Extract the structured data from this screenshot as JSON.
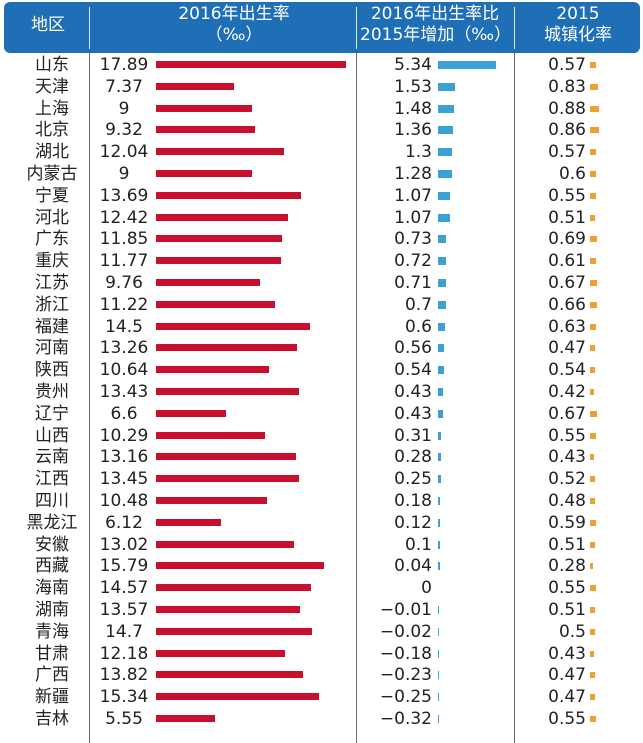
{
  "header": {
    "region": "地区",
    "birth_line1": "2016年出生率",
    "birth_line2": "（‰）",
    "inc_line1": "2016年出生率比",
    "inc_line2": "2015年增加（‰）",
    "urb_line1": "2015",
    "urb_line2": "城镇化率"
  },
  "colors": {
    "header_bg": "#1e6fb5",
    "birth_bar": "#c8102e",
    "inc_bar": "#3aa0d6",
    "urb_bar": "#f0a030"
  },
  "chart_data": {
    "type": "table",
    "columns": [
      "地区",
      "2016年出生率（‰）",
      "2016年出生率比2015年增加（‰）",
      "2015城镇化率"
    ],
    "rows": [
      {
        "region": "山东",
        "birth": "17.89",
        "inc": "5.34",
        "urb": "0.57"
      },
      {
        "region": "天津",
        "birth": "7.37",
        "inc": "1.53",
        "urb": "0.83"
      },
      {
        "region": "上海",
        "birth": "9",
        "inc": "1.48",
        "urb": "0.88"
      },
      {
        "region": "北京",
        "birth": "9.32",
        "inc": "1.36",
        "urb": "0.86"
      },
      {
        "region": "湖北",
        "birth": "12.04",
        "inc": "1.3",
        "urb": "0.57"
      },
      {
        "region": "内蒙古",
        "birth": "9",
        "inc": "1.28",
        "urb": "0.6"
      },
      {
        "region": "宁夏",
        "birth": "13.69",
        "inc": "1.07",
        "urb": "0.55"
      },
      {
        "region": "河北",
        "birth": "12.42",
        "inc": "1.07",
        "urb": "0.51"
      },
      {
        "region": "广东",
        "birth": "11.85",
        "inc": "0.73",
        "urb": "0.69"
      },
      {
        "region": "重庆",
        "birth": "11.77",
        "inc": "0.72",
        "urb": "0.61"
      },
      {
        "region": "江苏",
        "birth": "9.76",
        "inc": "0.71",
        "urb": "0.67"
      },
      {
        "region": "浙江",
        "birth": "11.22",
        "inc": "0.7",
        "urb": "0.66"
      },
      {
        "region": "福建",
        "birth": "14.5",
        "inc": "0.6",
        "urb": "0.63"
      },
      {
        "region": "河南",
        "birth": "13.26",
        "inc": "0.56",
        "urb": "0.47"
      },
      {
        "region": "陕西",
        "birth": "10.64",
        "inc": "0.54",
        "urb": "0.54"
      },
      {
        "region": "贵州",
        "birth": "13.43",
        "inc": "0.43",
        "urb": "0.42"
      },
      {
        "region": "辽宁",
        "birth": "6.6",
        "inc": "0.43",
        "urb": "0.67"
      },
      {
        "region": "山西",
        "birth": "10.29",
        "inc": "0.31",
        "urb": "0.55"
      },
      {
        "region": "云南",
        "birth": "13.16",
        "inc": "0.28",
        "urb": "0.43"
      },
      {
        "region": "江西",
        "birth": "13.45",
        "inc": "0.25",
        "urb": "0.52"
      },
      {
        "region": "四川",
        "birth": "10.48",
        "inc": "0.18",
        "urb": "0.48"
      },
      {
        "region": "黑龙江",
        "birth": "6.12",
        "inc": "0.12",
        "urb": "0.59"
      },
      {
        "region": "安徽",
        "birth": "13.02",
        "inc": "0.1",
        "urb": "0.51"
      },
      {
        "region": "西藏",
        "birth": "15.79",
        "inc": "0.04",
        "urb": "0.28"
      },
      {
        "region": "海南",
        "birth": "14.57",
        "inc": "0",
        "urb": "0.55"
      },
      {
        "region": "湖南",
        "birth": "13.57",
        "inc": "−0.01",
        "urb": "0.51"
      },
      {
        "region": "青海",
        "birth": "14.7",
        "inc": "−0.02",
        "urb": "0.5"
      },
      {
        "region": "甘肃",
        "birth": "12.18",
        "inc": "−0.18",
        "urb": "0.43"
      },
      {
        "region": "广西",
        "birth": "13.82",
        "inc": "−0.23",
        "urb": "0.47"
      },
      {
        "region": "新疆",
        "birth": "15.34",
        "inc": "−0.25",
        "urb": "0.47"
      },
      {
        "region": "吉林",
        "birth": "5.55",
        "inc": "−0.32",
        "urb": "0.55"
      }
    ]
  }
}
